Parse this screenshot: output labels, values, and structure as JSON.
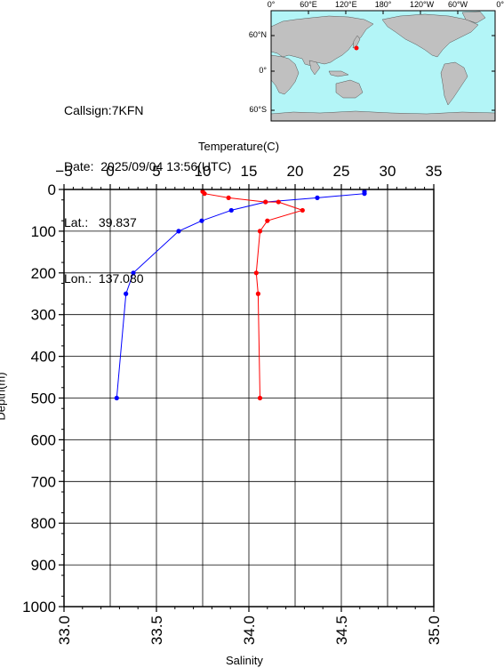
{
  "info": {
    "callsign_label": "Callsign:",
    "callsign": "7KFN",
    "date_label": "Date:",
    "date": "2025/09/04 13:56(UTC)",
    "lat_label": "Lat.:",
    "lat": "39.837",
    "lon_label": "Lon.:",
    "lon": "137.080"
  },
  "map": {
    "lon_ticks": [
      "0°",
      "60°E",
      "120°E",
      "180°",
      "120°W",
      "60°W",
      "0°"
    ],
    "lat_ticks": [
      "60°N",
      "0°",
      "60°S"
    ],
    "ocean_color": "#b3f5f7",
    "land_color": "#c0c0c0",
    "marker_color": "#ff0000"
  },
  "chart_data": {
    "type": "line",
    "xlabel_top": "Temperature(C)",
    "xlabel_bottom": "Salinity",
    "ylabel": "Depth(m)",
    "depth_ticks": [
      "0",
      "100",
      "200",
      "300",
      "400",
      "500",
      "600",
      "700",
      "800",
      "900",
      "1000"
    ],
    "temperature_ticks": [
      "−5",
      "0",
      "5",
      "10",
      "15",
      "20",
      "25",
      "30",
      "35"
    ],
    "salinity_ticks": [
      "33.0",
      "33.5",
      "34.0",
      "34.5",
      "35.0"
    ],
    "ylim": [
      0,
      1000
    ],
    "temperature_xlim": [
      -5,
      35
    ],
    "salinity_xlim": [
      33.0,
      35.0
    ],
    "grid": true,
    "series": [
      {
        "axis": "temperature",
        "color": "#0000ff",
        "x": [
          27.5,
          27.5,
          22.4,
          16.8,
          13.1,
          9.9,
          7.4,
          2.5,
          1.7,
          0.7
        ],
        "y": [
          5,
          10,
          20,
          30,
          50,
          75,
          100,
          200,
          250,
          500
        ]
      },
      {
        "axis": "salinity",
        "color": "#ff0000",
        "x": [
          33.75,
          33.76,
          33.89,
          34.09,
          34.16,
          34.29,
          34.1,
          34.06,
          34.04,
          34.05,
          34.06
        ],
        "y": [
          5,
          10,
          20,
          30,
          30,
          50,
          75,
          100,
          200,
          250,
          500
        ]
      }
    ]
  }
}
